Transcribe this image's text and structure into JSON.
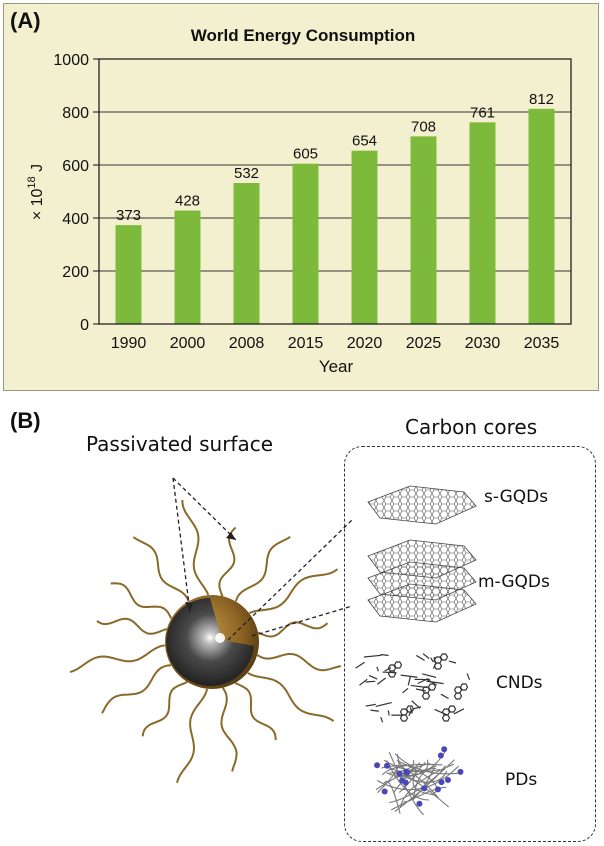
{
  "panel_a": {
    "label": "(A)"
  },
  "panel_b": {
    "label": "(B)",
    "passivated_label": "Passivated surface",
    "cores_title": "Carbon cores",
    "cores": [
      "s-GQDs",
      "m-GQDs",
      "CNDs",
      "PDs"
    ]
  },
  "colors": {
    "bar": "#7db93a",
    "panel_bg": "#f3f0cf",
    "shell": "#9a6e2a",
    "core": "#2e2e2e"
  },
  "chart_data": {
    "type": "bar",
    "title": "World Energy Consumption",
    "xlabel": "Year",
    "ylabel": "× 10",
    "ylabel_exponent": "18",
    "ylabel_unit": " J",
    "categories": [
      "1990",
      "2000",
      "2008",
      "2015",
      "2020",
      "2025",
      "2030",
      "2035"
    ],
    "values": [
      373,
      428,
      532,
      605,
      654,
      708,
      761,
      812
    ],
    "ylim": [
      0,
      1000
    ],
    "yticks": [
      0,
      200,
      400,
      600,
      800,
      1000
    ],
    "grid": true
  }
}
